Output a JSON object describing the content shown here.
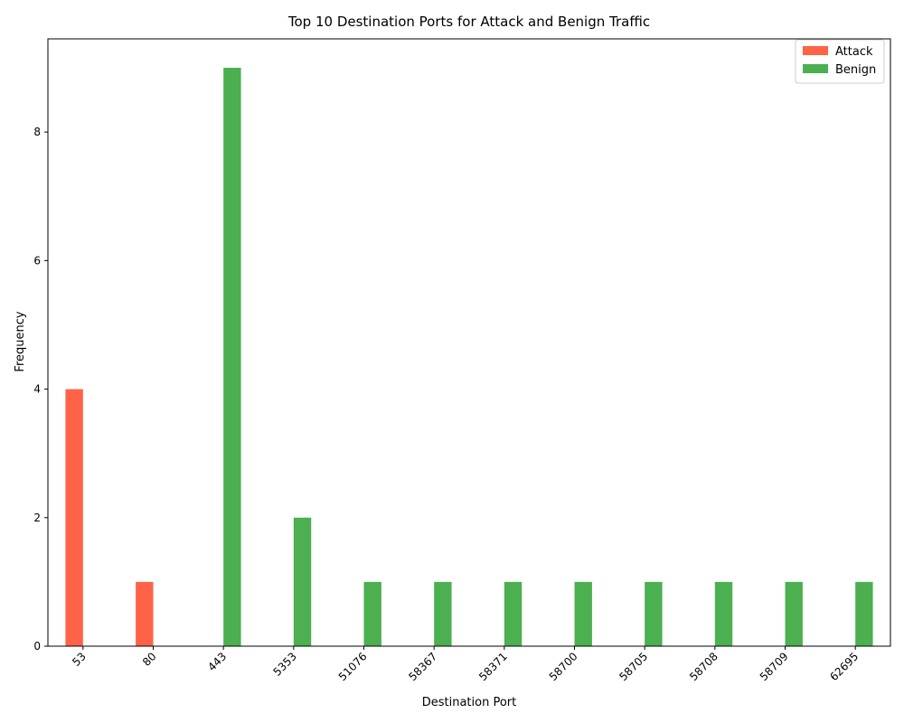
{
  "chart_data": {
    "type": "bar",
    "title": "Top 10 Destination Ports for Attack and Benign Traffic",
    "xlabel": "Destination Port",
    "ylabel": "Frequency",
    "categories": [
      "53",
      "80",
      "443",
      "5353",
      "51076",
      "58367",
      "58371",
      "58700",
      "58705",
      "58708",
      "58709",
      "62695"
    ],
    "series": [
      {
        "name": "Attack",
        "color": "#ff6347",
        "values": [
          4,
          1,
          0,
          0,
          0,
          0,
          0,
          0,
          0,
          0,
          0,
          0
        ]
      },
      {
        "name": "Benign",
        "color": "#4caf50",
        "values": [
          0,
          0,
          9,
          2,
          1,
          1,
          1,
          1,
          1,
          1,
          1,
          1
        ]
      }
    ],
    "ylim": [
      0,
      9.45
    ],
    "yticks": [
      0,
      2,
      4,
      6,
      8
    ],
    "legend_position": "upper right",
    "grid": false
  }
}
